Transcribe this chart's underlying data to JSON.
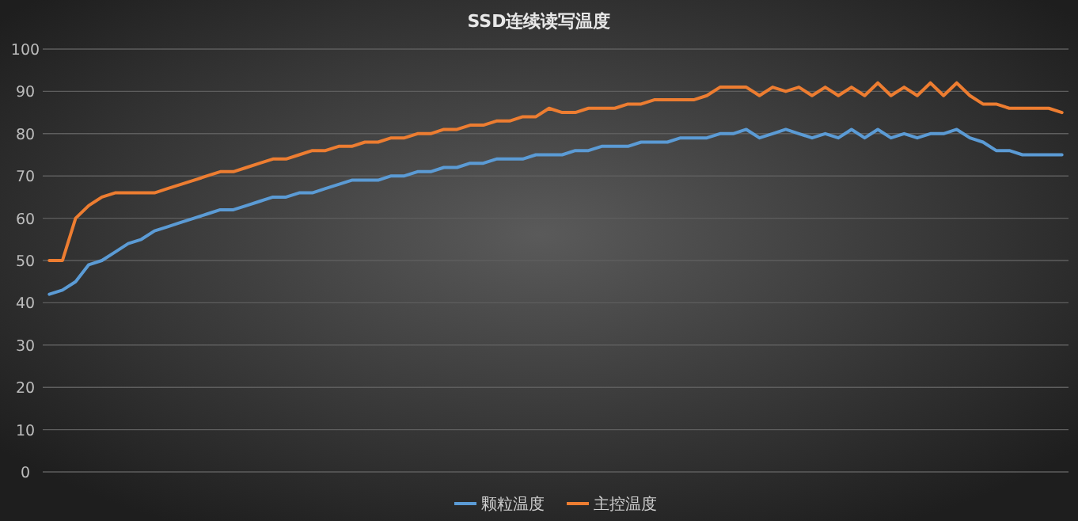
{
  "chart_data": {
    "type": "line",
    "title": "SSD连续读写温度",
    "categories": [
      null,
      null,
      null,
      null,
      null,
      null,
      null,
      null,
      null,
      null,
      null,
      null,
      null,
      null,
      null,
      null,
      null,
      null,
      null,
      null,
      null,
      null,
      null,
      null,
      null,
      null,
      null,
      null,
      null,
      null,
      null,
      null,
      null,
      null,
      null,
      null,
      null,
      null,
      null,
      null,
      null,
      null,
      null,
      null,
      null,
      null,
      null,
      null,
      null,
      null,
      null,
      null,
      null,
      null,
      null,
      null,
      null,
      null,
      null,
      null,
      null,
      null,
      null,
      null,
      null,
      null,
      null,
      null,
      null,
      null,
      null,
      null,
      null,
      null,
      null,
      null,
      null,
      null
    ],
    "series": [
      {
        "name": "颗粒温度",
        "color": "#5b9bd5",
        "values": [
          42,
          43,
          45,
          49,
          50,
          52,
          54,
          55,
          57,
          58,
          59,
          60,
          61,
          62,
          62,
          63,
          64,
          65,
          65,
          66,
          66,
          67,
          68,
          69,
          69,
          69,
          70,
          70,
          71,
          71,
          72,
          72,
          73,
          73,
          74,
          74,
          74,
          75,
          75,
          75,
          76,
          76,
          77,
          77,
          77,
          78,
          78,
          78,
          79,
          79,
          79,
          80,
          80,
          81,
          79,
          80,
          81,
          80,
          79,
          80,
          79,
          81,
          79,
          81,
          79,
          80,
          79,
          80,
          80,
          81,
          79,
          78,
          76,
          76,
          75,
          75,
          75,
          75
        ]
      },
      {
        "name": "主控温度",
        "color": "#ed7d31",
        "values": [
          50,
          50,
          60,
          63,
          65,
          66,
          66,
          66,
          66,
          67,
          68,
          69,
          70,
          71,
          71,
          72,
          73,
          74,
          74,
          75,
          76,
          76,
          77,
          77,
          78,
          78,
          79,
          79,
          80,
          80,
          81,
          81,
          82,
          82,
          83,
          83,
          84,
          84,
          86,
          85,
          85,
          86,
          86,
          86,
          87,
          87,
          88,
          88,
          88,
          88,
          89,
          91,
          91,
          91,
          89,
          91,
          90,
          91,
          89,
          91,
          89,
          91,
          89,
          92,
          89,
          91,
          89,
          92,
          89,
          92,
          89,
          87,
          87,
          86,
          86,
          86,
          86,
          85
        ]
      }
    ],
    "ylim": [
      0,
      100
    ],
    "yticks": [
      0,
      10,
      20,
      30,
      40,
      50,
      60,
      70,
      80,
      90,
      100
    ],
    "grid": "y",
    "legend": "bottom",
    "line_style": "solid",
    "marker": "none"
  }
}
